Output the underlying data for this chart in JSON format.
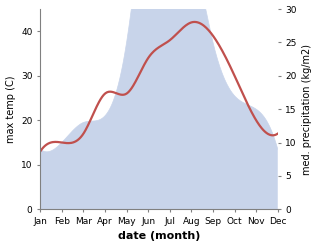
{
  "months": [
    "Jan",
    "Feb",
    "Mar",
    "Apr",
    "May",
    "Jun",
    "Jul",
    "Aug",
    "Sep",
    "Oct",
    "Nov",
    "Dec"
  ],
  "temp": [
    13,
    15,
    17,
    26,
    26,
    34,
    38,
    42,
    39,
    30,
    20,
    17
  ],
  "precip": [
    9,
    10,
    13,
    14,
    25,
    45,
    39,
    38,
    25,
    17,
    15,
    9
  ],
  "temp_color": "#c0504d",
  "precip_fill": "#c8d4ea",
  "ylim_temp": [
    0,
    45
  ],
  "ylim_precip": [
    0,
    30
  ],
  "yticks_temp": [
    0,
    10,
    20,
    30,
    40
  ],
  "yticks_precip": [
    0,
    5,
    10,
    15,
    20,
    25,
    30
  ],
  "xlabel": "date (month)",
  "ylabel_left": "max temp (C)",
  "ylabel_right": "med. precipitation (kg/m2)",
  "bg_color": "#ffffff",
  "label_fontsize": 7,
  "tick_fontsize": 6.5,
  "xlabel_fontsize": 8
}
